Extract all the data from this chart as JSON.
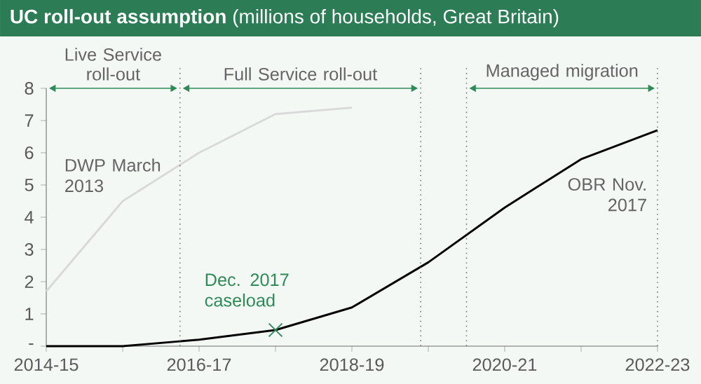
{
  "chart_data": {
    "type": "line",
    "title": "**UC roll-out assumption** (millions of households, Great Britain)",
    "categories": [
      "2014-15",
      null,
      "2016-17",
      null,
      "2018-19",
      null,
      "2020-21",
      null,
      "2022-23"
    ],
    "ylim": [
      0,
      8
    ],
    "yticks": [
      {
        "value": 0,
        "label": "-"
      },
      1,
      2,
      3,
      4,
      5,
      6,
      7,
      8
    ],
    "series": [
      {
        "name": "DWP March 2013",
        "color": "#d9d9d9",
        "values": [
          1.7,
          4.5,
          6.0,
          7.2,
          7.4,
          null,
          null,
          null,
          null
        ]
      },
      {
        "name": "OBR Nov. 2017",
        "color": "#000000",
        "values": [
          0,
          0,
          0.2,
          0.5,
          1.2,
          2.6,
          4.3,
          5.8,
          6.7
        ]
      },
      {
        "type": "scatter",
        "marker": "cross",
        "color": "#2e8b57",
        "values": [
          null,
          null,
          null,
          0.5,
          null,
          null,
          null,
          null,
          null
        ]
      }
    ],
    "annotations": [
      "Dec. 2017 caseload",
      "Live Service roll-out",
      "Full Service roll-out",
      "Managed migration"
    ],
    "marker": "none",
    "line_style": "solid"
  }
}
